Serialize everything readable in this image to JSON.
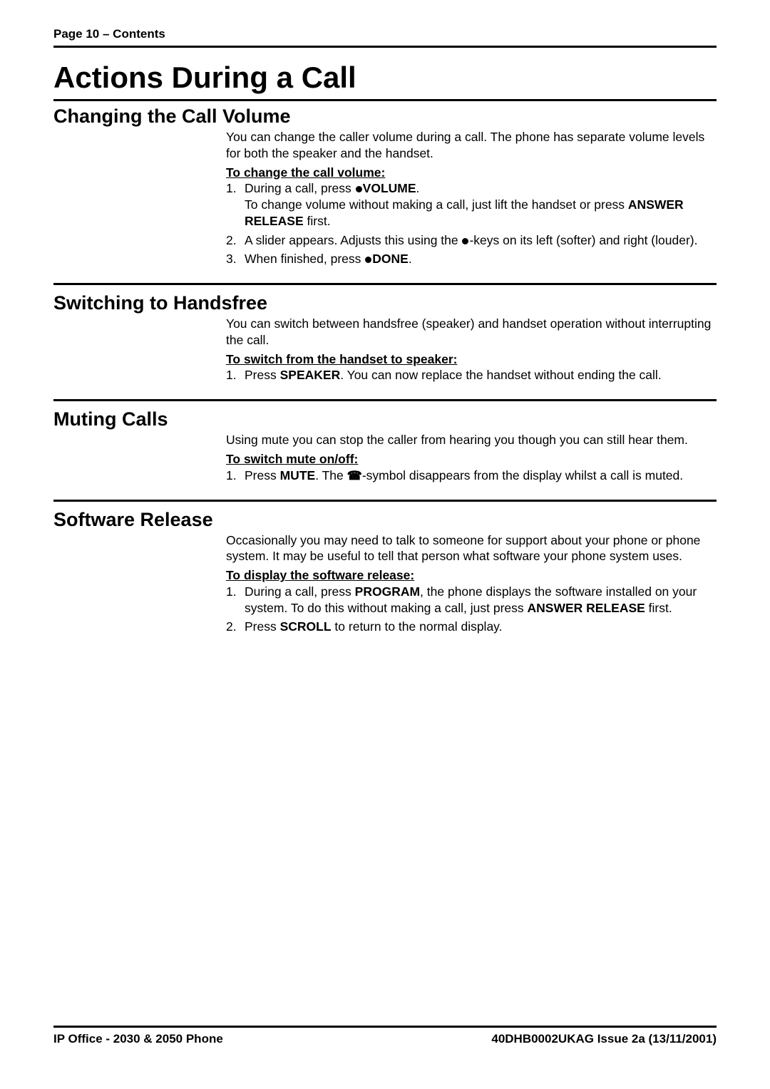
{
  "fonts": {
    "body_family": "Arial, Helvetica, sans-serif"
  },
  "colors": {
    "text": "#000000",
    "background": "#ffffff",
    "rule": "#000000"
  },
  "page_header": "Page 10 – Contents",
  "title": "Actions During a Call",
  "sections": {
    "vol": {
      "heading": "Changing the Call Volume",
      "intro": "You can change the caller volume during a call.  The phone has separate volume levels for both the speaker and the handset.",
      "sub": "To change the call volume:",
      "items": {
        "0": {
          "pre": "During a call, press ",
          "key": "VOLUME",
          "post": ".",
          "line2_pre": "To change volume without making a call, just lift the handset or press ",
          "line2_key": "ANSWER RELEASE",
          "line2_post": " first."
        },
        "1": {
          "pre": "A slider appears. Adjusts this using the ",
          "post": "-keys on its left (softer) and right (louder)."
        },
        "2": {
          "pre": "When finished, press ",
          "key": "DONE",
          "post": "."
        }
      }
    },
    "hf": {
      "heading": "Switching to Handsfree",
      "intro": "You can switch between handsfree (speaker) and handset operation without interrupting the call.",
      "sub": "To switch from the handset to speaker:",
      "items": {
        "0": {
          "pre": "Press ",
          "key": "SPEAKER",
          "post": ". You can now replace the handset without ending the call."
        }
      }
    },
    "mute": {
      "heading": "Muting Calls",
      "intro": "Using mute you can stop the caller from hearing you though you can still hear them.",
      "sub": "To switch mute on/off:",
      "items": {
        "0": {
          "pre": "Press ",
          "key": "MUTE",
          "mid": ". The ",
          "post": "-symbol disappears from the display whilst a call is muted."
        }
      }
    },
    "sw": {
      "heading": "Software Release",
      "intro": "Occasionally you may need to talk to someone for support about your phone or phone system. It may be useful to tell that person what software your phone system uses.",
      "sub": "To display the software release:",
      "items": {
        "0": {
          "pre": "During a call, press ",
          "key": "PROGRAM",
          "mid": ", the phone displays the software installed on your system. To do this without making a call, just press ",
          "key2": "ANSWER RELEASE",
          "post": " first."
        },
        "1": {
          "pre": "Press ",
          "key": "SCROLL",
          "post": " to return to the normal display."
        }
      }
    }
  },
  "footer": {
    "left": "IP Office - 2030 & 2050 Phone",
    "right": "40DHB0002UKAG Issue 2a (13/11/2001)"
  }
}
